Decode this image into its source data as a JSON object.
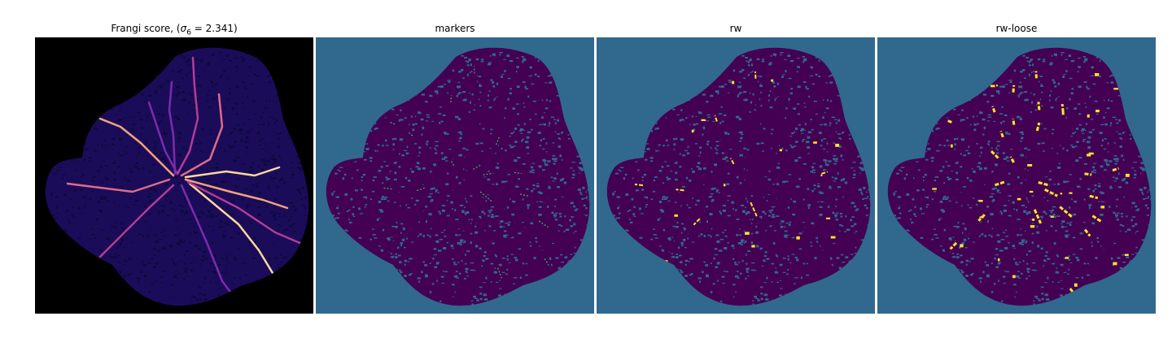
{
  "figure": {
    "panels": [
      {
        "id": "frangi",
        "title_prefix": "Frangi score, (",
        "title_sigma": "σ",
        "title_sub": "6",
        "title_suffix": " = 2.341)",
        "background": "#000000",
        "blob_color": "#1b0c5a",
        "speck_color": "#0d0a3c",
        "vessel_colors": [
          "#7b2ca8",
          "#b43c96",
          "#e06a8a",
          "#f2a37a",
          "#fcd8a0"
        ]
      },
      {
        "id": "markers",
        "title": "markers",
        "background": "#31688e",
        "blob_color": "#440154",
        "speck_color": "#31688e",
        "label_color": "#35b779"
      },
      {
        "id": "rw",
        "title": "rw",
        "background": "#31688e",
        "blob_color": "#440154",
        "speck_color": "#31688e",
        "label_color": "#fde725"
      },
      {
        "id": "rw-loose",
        "title": "rw-loose",
        "background": "#31688e",
        "blob_color": "#440154",
        "speck_color": "#31688e",
        "label_color": "#fde725"
      }
    ]
  }
}
